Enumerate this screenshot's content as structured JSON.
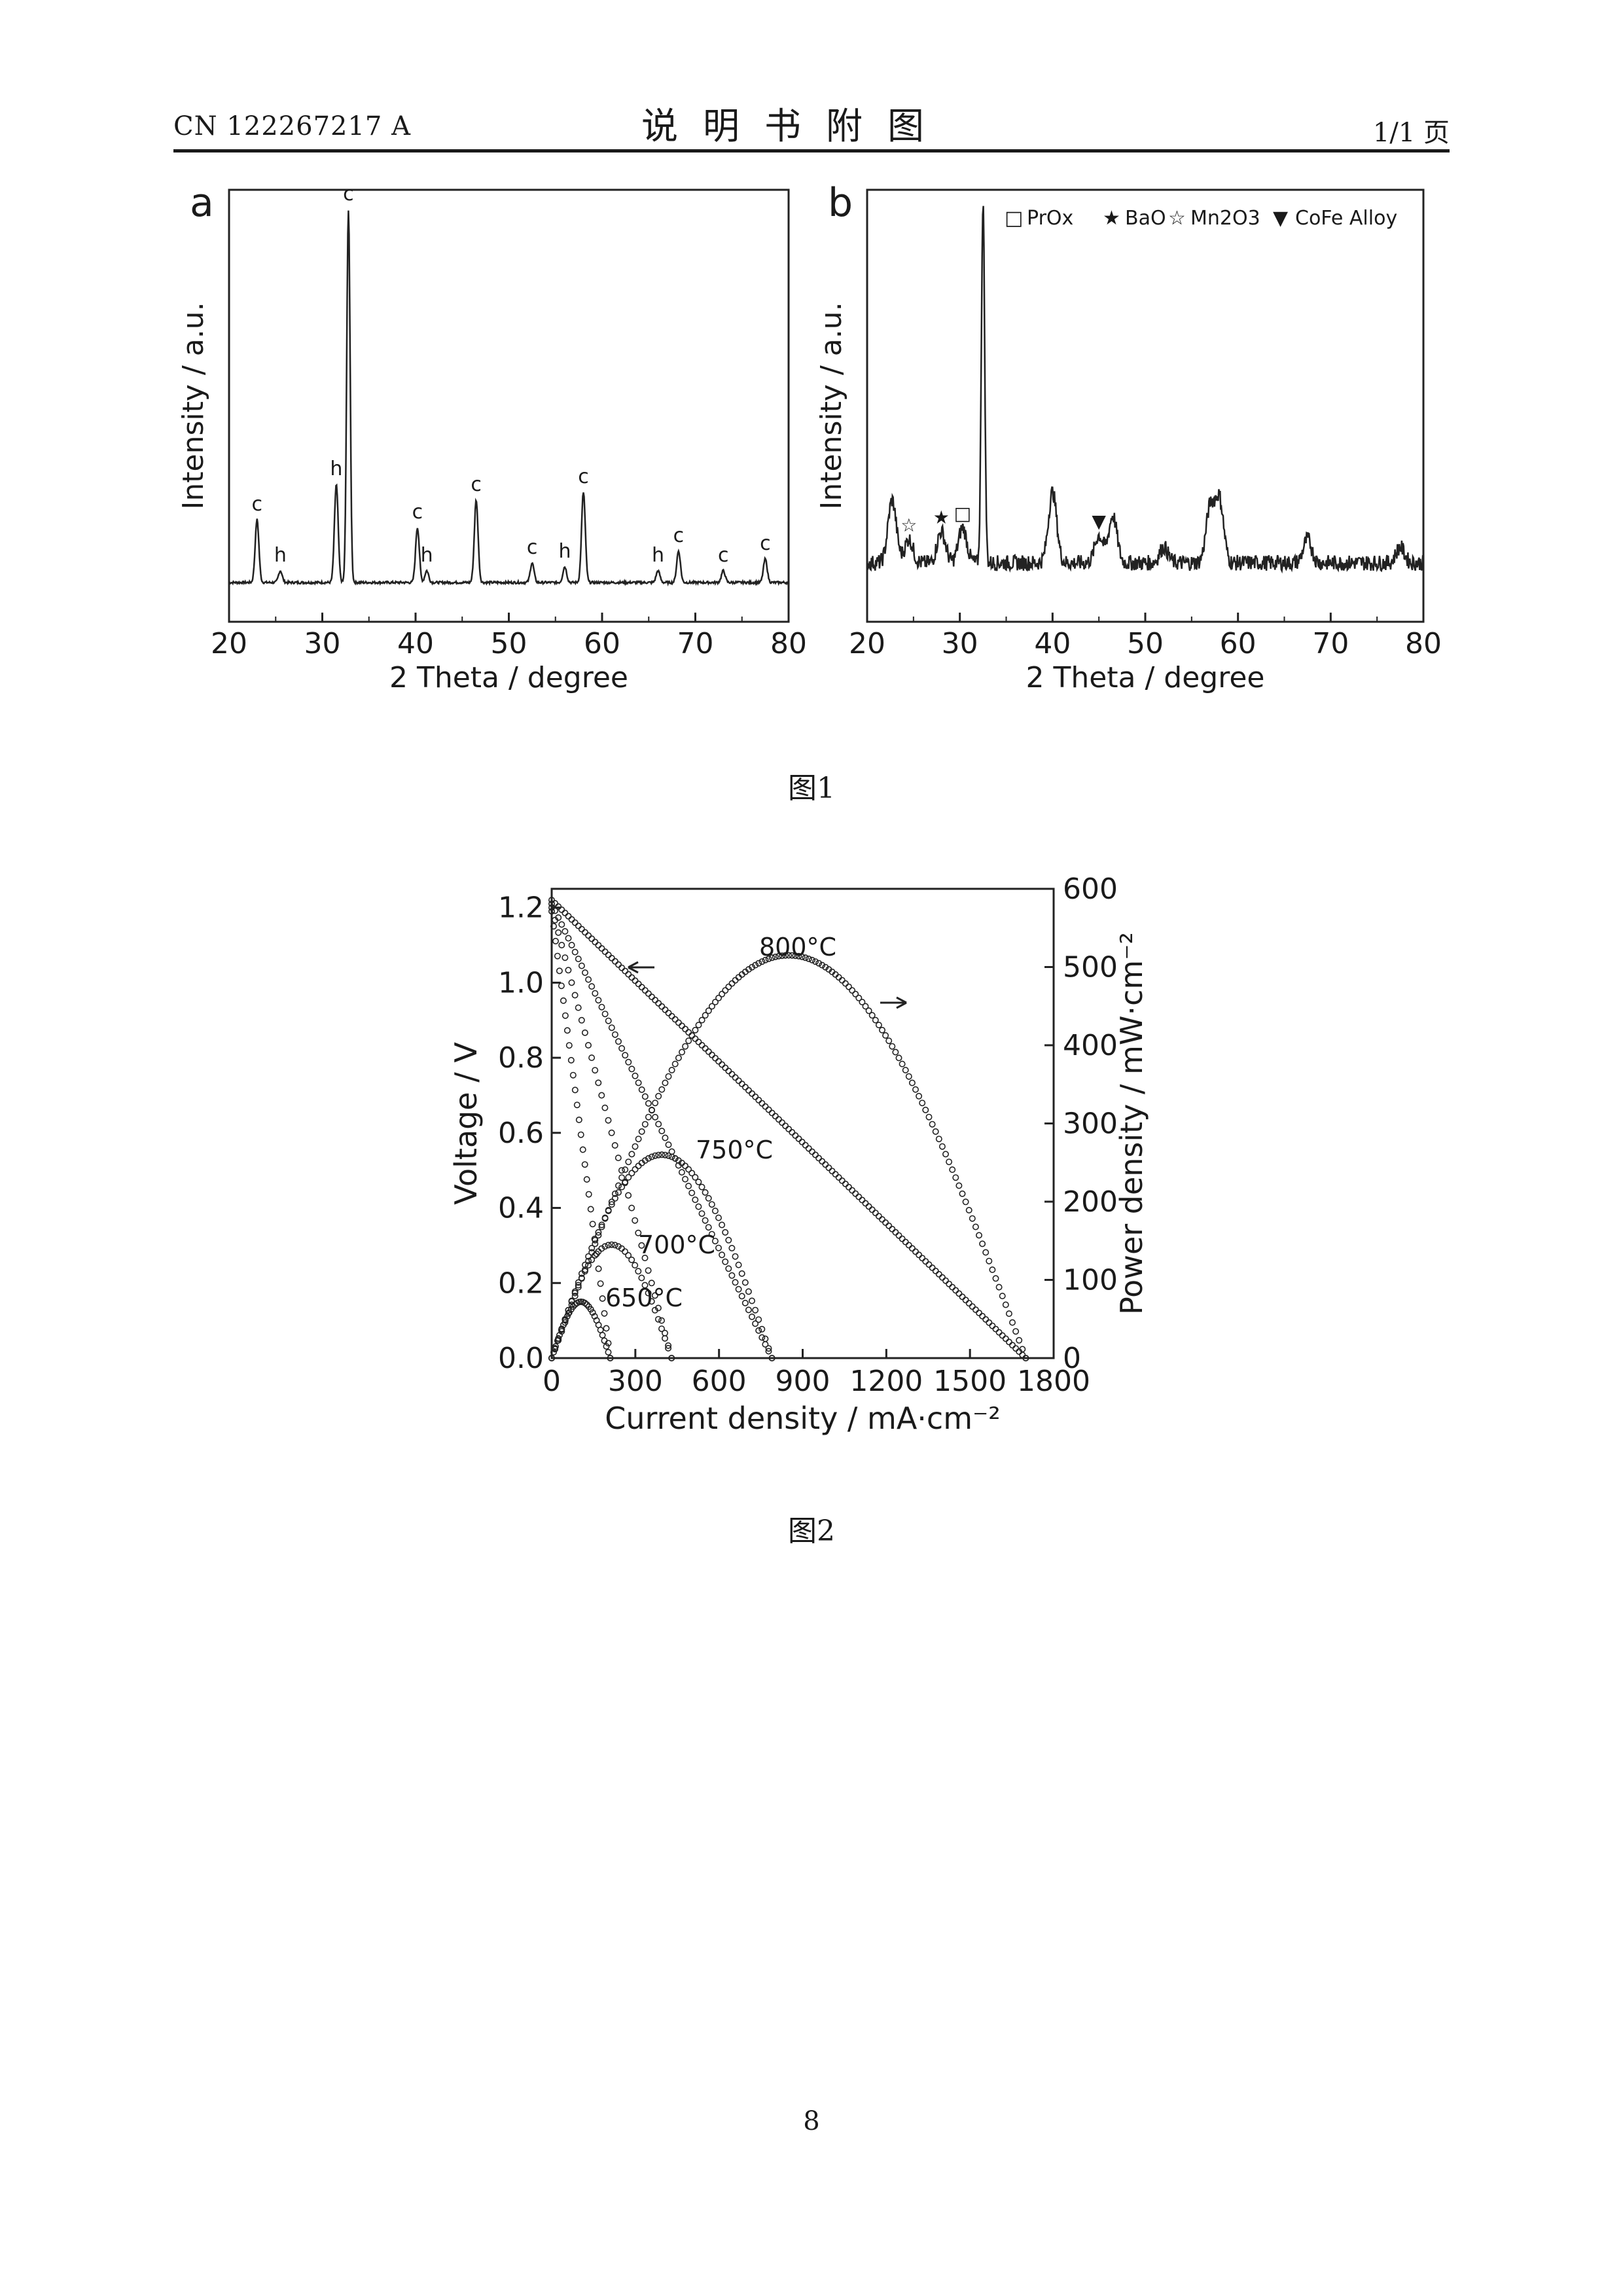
{
  "header": {
    "doc_number": "CN 122267217 A",
    "section_title": "说明书附图",
    "page_ref": "1/1 页"
  },
  "figure1": {
    "caption": "图1",
    "panel_a": {
      "label": "a",
      "xlabel": "2 Theta / degree",
      "ylabel": "Intensity / a.u.",
      "xticks": [
        "20",
        "30",
        "40",
        "50",
        "60",
        "70",
        "80"
      ],
      "peak_labels": [
        {
          "x": 23.0,
          "text": "c"
        },
        {
          "x": 25.5,
          "text": "h"
        },
        {
          "x": 31.5,
          "text": "h"
        },
        {
          "x": 32.8,
          "text": "c"
        },
        {
          "x": 40.2,
          "text": "c"
        },
        {
          "x": 41.2,
          "text": "h"
        },
        {
          "x": 46.5,
          "text": "c"
        },
        {
          "x": 52.5,
          "text": "c"
        },
        {
          "x": 56.0,
          "text": "h"
        },
        {
          "x": 58.0,
          "text": "c"
        },
        {
          "x": 66.0,
          "text": "h"
        },
        {
          "x": 68.2,
          "text": "c"
        },
        {
          "x": 73.0,
          "text": "c"
        },
        {
          "x": 77.5,
          "text": "c"
        }
      ]
    },
    "panel_b": {
      "label": "b",
      "xlabel": "2 Theta / degree",
      "ylabel": "Intensity / a.u.",
      "xticks": [
        "20",
        "30",
        "40",
        "50",
        "60",
        "70",
        "80"
      ],
      "legend": [
        {
          "symbol": "□",
          "text": "PrOx"
        },
        {
          "symbol": "★",
          "text": "BaO"
        },
        {
          "symbol": "☆",
          "text": "Mn2O3"
        },
        {
          "symbol": "▼",
          "text": "CoFe Alloy"
        }
      ]
    }
  },
  "figure2": {
    "caption": "图2",
    "xlabel": "Current density / mA·cm⁻²",
    "ylabel_left": "Voltage / V",
    "ylabel_right": "Power density / mW·cm⁻²",
    "xticks": [
      "0",
      "300",
      "600",
      "900",
      "1200",
      "1500",
      "1800"
    ],
    "yticks_left": [
      "0.0",
      "0.2",
      "0.4",
      "0.6",
      "0.8",
      "1.0",
      "1.2"
    ],
    "yticks_right": [
      "0",
      "100",
      "200",
      "300",
      "400",
      "500",
      "600"
    ],
    "temp_labels": [
      "800°C",
      "750°C",
      "700°C",
      "650°C"
    ]
  },
  "page_number": "8",
  "chart_data": [
    {
      "type": "line",
      "panel": "a",
      "xlabel": "2 Theta / degree",
      "ylabel": "Intensity / a.u.",
      "xlim": [
        20,
        80
      ],
      "series": [
        {
          "peaks": [
            {
              "x": 23.0,
              "h": 0.16
            },
            {
              "x": 25.5,
              "h": 0.03
            },
            {
              "x": 31.5,
              "h": 0.25
            },
            {
              "x": 32.8,
              "h": 0.95
            },
            {
              "x": 40.2,
              "h": 0.14
            },
            {
              "x": 41.2,
              "h": 0.03
            },
            {
              "x": 46.5,
              "h": 0.21
            },
            {
              "x": 52.5,
              "h": 0.05
            },
            {
              "x": 56.0,
              "h": 0.04
            },
            {
              "x": 58.0,
              "h": 0.23
            },
            {
              "x": 66.0,
              "h": 0.03
            },
            {
              "x": 68.2,
              "h": 0.08
            },
            {
              "x": 73.0,
              "h": 0.03
            },
            {
              "x": 77.5,
              "h": 0.06
            }
          ],
          "baseline": 0.05
        }
      ]
    },
    {
      "type": "line",
      "panel": "b",
      "xlabel": "2 Theta / degree",
      "ylabel": "Intensity / a.u.",
      "xlim": [
        20,
        80
      ],
      "series": [
        {
          "peaks": [
            {
              "x": 22.7,
              "h": 0.16
            },
            {
              "x": 24.5,
              "h": 0.06
            },
            {
              "x": 28.0,
              "h": 0.08
            },
            {
              "x": 30.3,
              "h": 0.09
            },
            {
              "x": 32.5,
              "h": 0.92
            },
            {
              "x": 40.0,
              "h": 0.18
            },
            {
              "x": 45.0,
              "h": 0.07
            },
            {
              "x": 46.5,
              "h": 0.12
            },
            {
              "x": 52.0,
              "h": 0.04
            },
            {
              "x": 57.0,
              "h": 0.14
            },
            {
              "x": 58.0,
              "h": 0.16
            },
            {
              "x": 67.5,
              "h": 0.06
            },
            {
              "x": 77.5,
              "h": 0.04
            }
          ],
          "baseline": 0.1
        }
      ]
    },
    {
      "type": "line",
      "panel": "fig2",
      "xlabel": "Current density / mA·cm⁻²",
      "ylabel": "Voltage / V",
      "y2label": "Power density / mW·cm⁻²",
      "xlim": [
        0,
        1800
      ],
      "ylim": [
        0.0,
        1.25
      ],
      "y2lim": [
        0,
        600
      ],
      "series": [
        {
          "name": "800°C",
          "ocv": 1.22,
          "jmax": 1700,
          "peak_power": 515,
          "peak_j": 830
        },
        {
          "name": "750°C",
          "ocv": 1.21,
          "jmax": 790,
          "peak_power": 260,
          "peak_j": 400
        },
        {
          "name": "700°C",
          "ocv": 1.2,
          "jmax": 430,
          "peak_power": 145,
          "peak_j": 215
        },
        {
          "name": "650°C",
          "ocv": 1.19,
          "jmax": 210,
          "peak_power": 72,
          "peak_j": 110
        }
      ]
    }
  ]
}
